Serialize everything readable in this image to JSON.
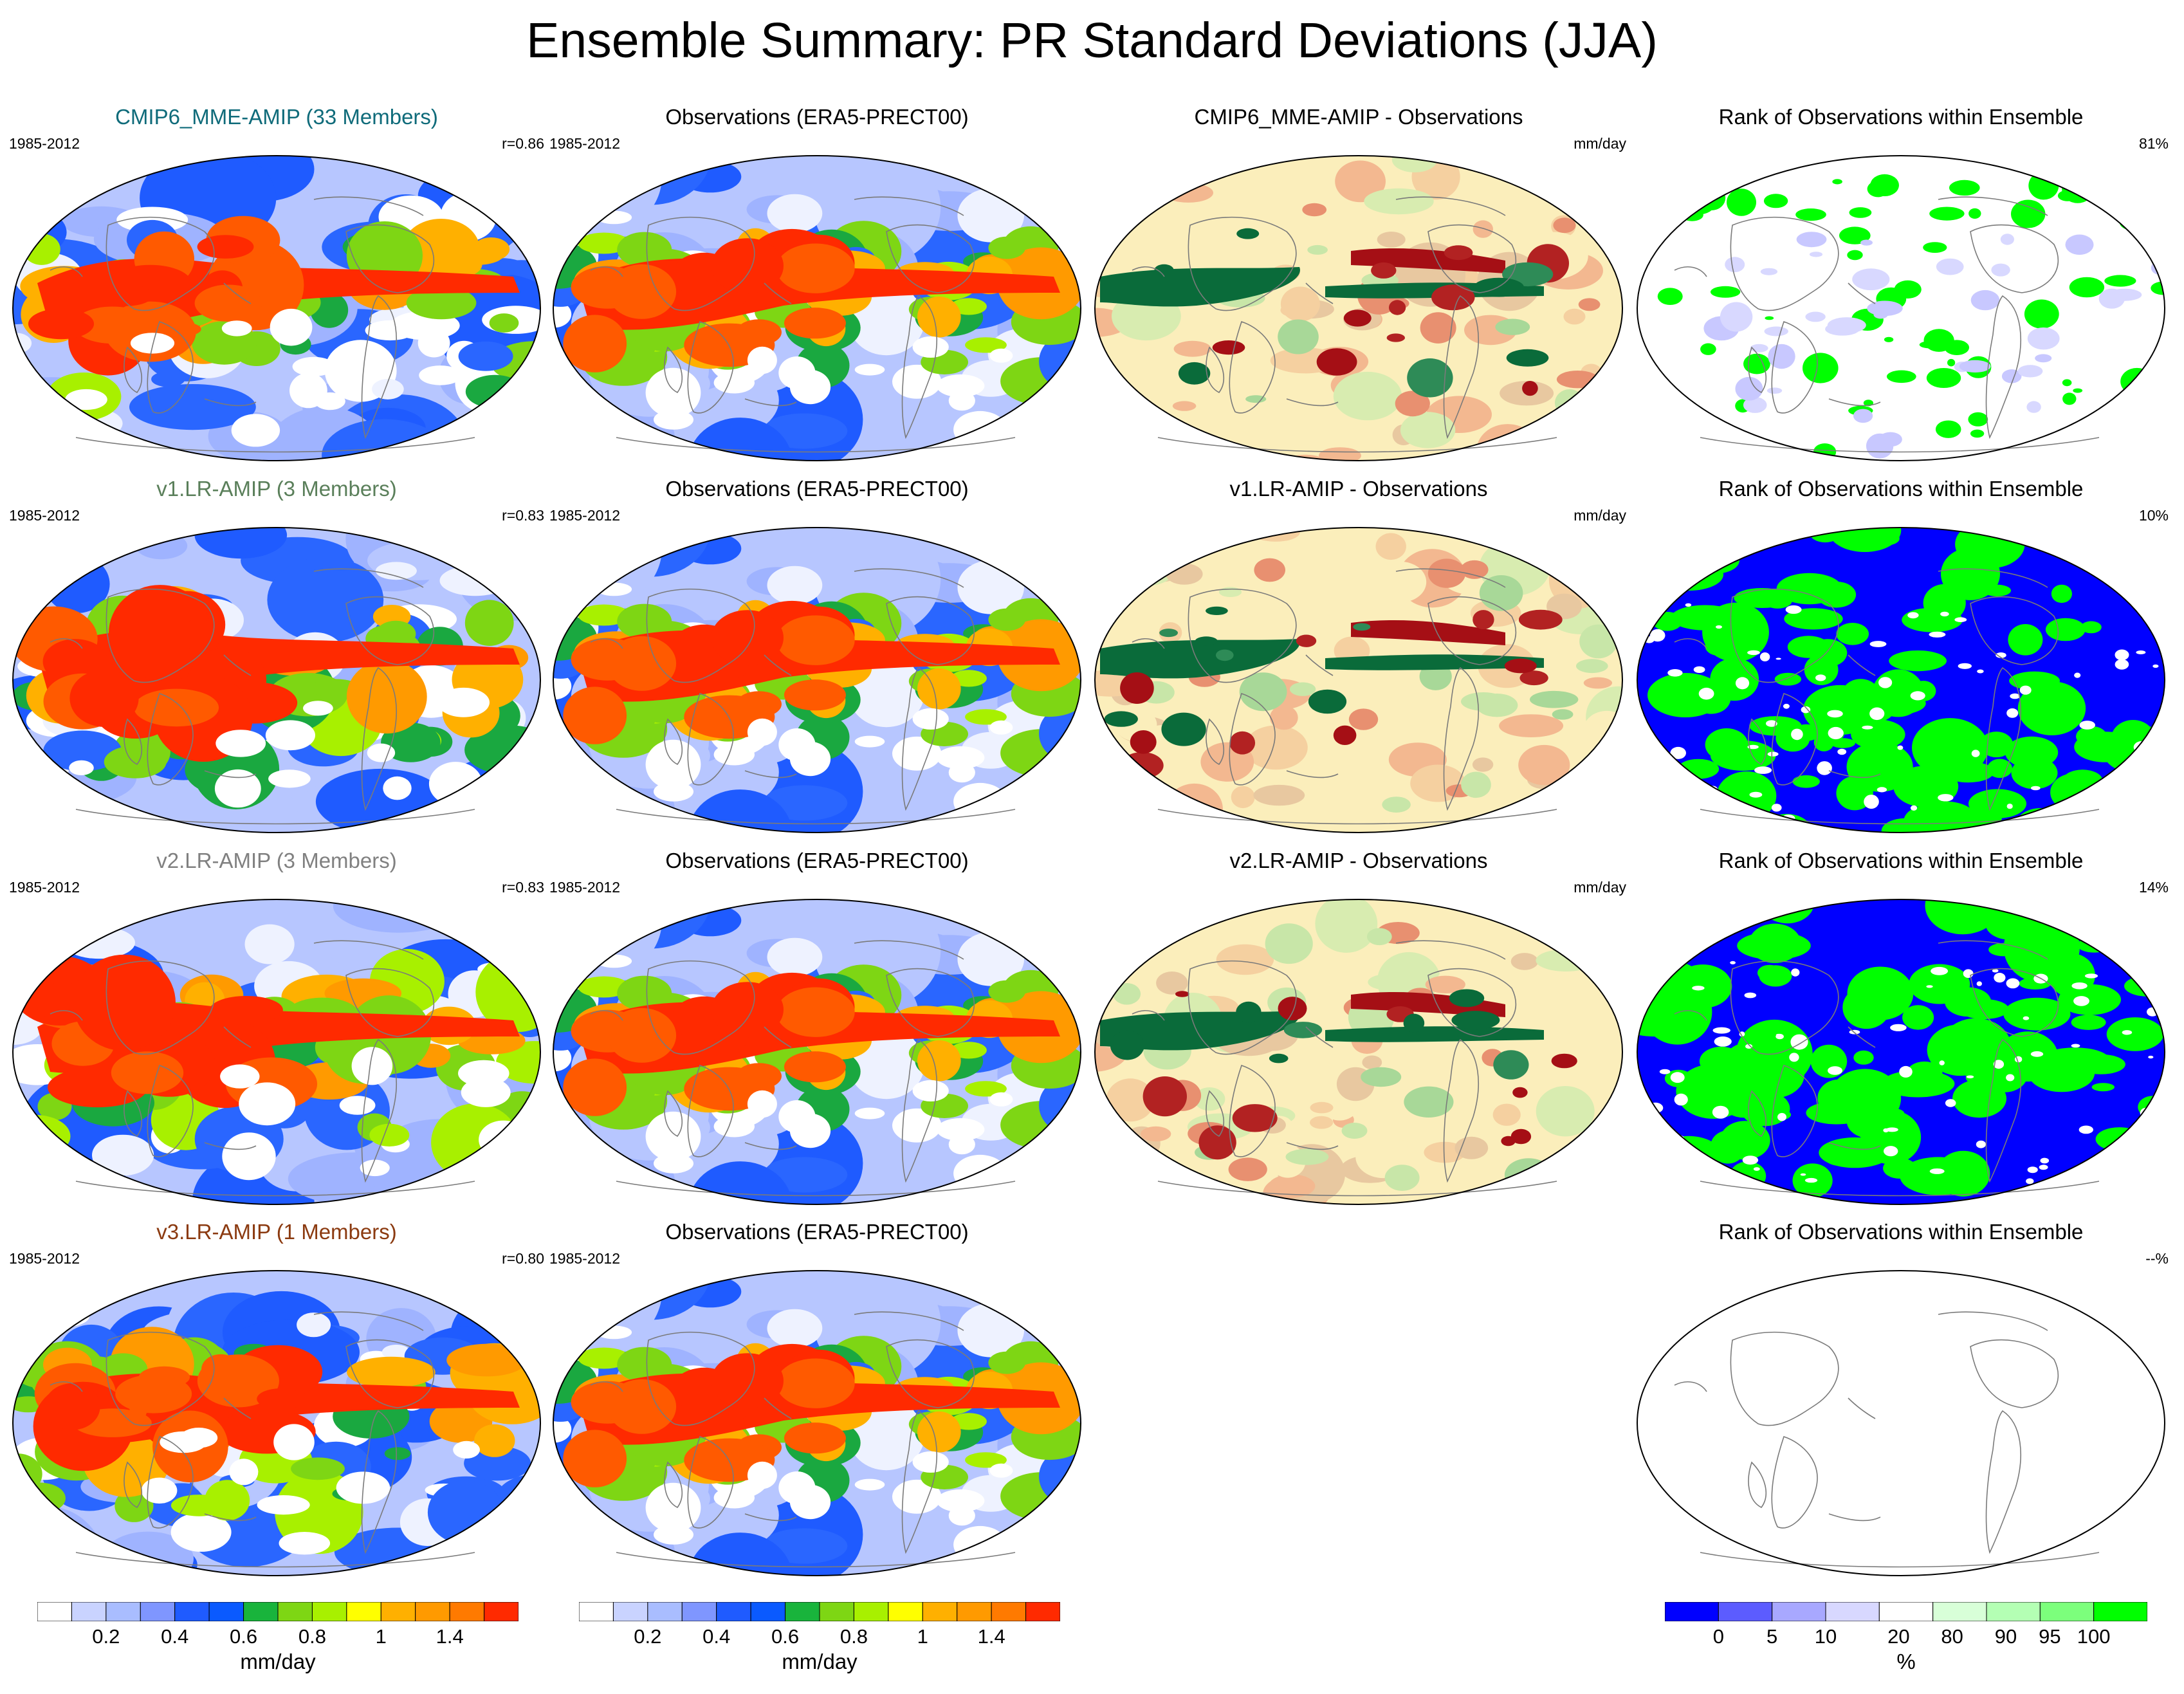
{
  "title": "Ensemble Summary: PR Standard Deviations (JJA)",
  "colors": {
    "model_title_colors": [
      "#0f6b7a",
      "#5a7f5a",
      "#808080",
      "#8b3a10"
    ],
    "obs_title_color": "#000000",
    "continent_line": "#7a7a7a"
  },
  "rows": [
    {
      "model": {
        "title": "CMIP6_MME-AMIP (33 Members)",
        "period": "1985-2012",
        "corr": "r=0.86",
        "title_color": "#0f6b7a"
      },
      "obs": {
        "title": "Observations (ERA5-PRECT00)",
        "period": "1985-2012"
      },
      "diff": {
        "title": "CMIP6_MME-AMIP - Observations",
        "units": "mm/day"
      },
      "rank": {
        "title": "Rank of Observations within Ensemble",
        "value": "81%",
        "style": "sparse"
      }
    },
    {
      "model": {
        "title": "v1.LR-AMIP (3 Members)",
        "period": "1985-2012",
        "corr": "r=0.83",
        "title_color": "#5a7f5a"
      },
      "obs": {
        "title": "Observations (ERA5-PRECT00)",
        "period": "1985-2012"
      },
      "diff": {
        "title": "v1.LR-AMIP - Observations",
        "units": "mm/day"
      },
      "rank": {
        "title": "Rank of Observations within Ensemble",
        "value": "10%",
        "style": "dense"
      }
    },
    {
      "model": {
        "title": "v2.LR-AMIP (3 Members)",
        "period": "1985-2012",
        "corr": "r=0.83",
        "title_color": "#808080"
      },
      "obs": {
        "title": "Observations (ERA5-PRECT00)",
        "period": "1985-2012"
      },
      "diff": {
        "title": "v2.LR-AMIP - Observations",
        "units": "mm/day"
      },
      "rank": {
        "title": "Rank of Observations within Ensemble",
        "value": "14%",
        "style": "dense"
      }
    },
    {
      "model": {
        "title": "v3.LR-AMIP (1 Members)",
        "period": "1985-2012",
        "corr": "r=0.80",
        "title_color": "#8b3a10"
      },
      "obs": {
        "title": "Observations (ERA5-PRECT00)",
        "period": "1985-2012"
      },
      "diff": null,
      "rank": {
        "title": "Rank of Observations within Ensemble",
        "value": "--%",
        "style": "empty"
      }
    }
  ],
  "colorbars": {
    "std": {
      "colors": [
        "#ffffff",
        "#c9d3ff",
        "#a9bdff",
        "#7f96ff",
        "#1f5bff",
        "#0a5aff",
        "#19b43c",
        "#7ed614",
        "#a8f000",
        "#ffff00",
        "#ffb000",
        "#ff9a00",
        "#ff7a00",
        "#ff2a00"
      ],
      "ticks": [
        "0.2",
        "0.4",
        "0.6",
        "0.8",
        "1",
        "1.4"
      ],
      "units": "mm/day"
    },
    "rank": {
      "colors": [
        "#0000ff",
        "#5c5cff",
        "#a8a8ff",
        "#d8d8ff",
        "#ffffff",
        "#d8ffd8",
        "#b4ffb4",
        "#7cff7c",
        "#00ff00"
      ],
      "ticks": [
        "0",
        "5",
        "10",
        "20",
        "80",
        "90",
        "95",
        "100"
      ],
      "units": "%"
    }
  }
}
